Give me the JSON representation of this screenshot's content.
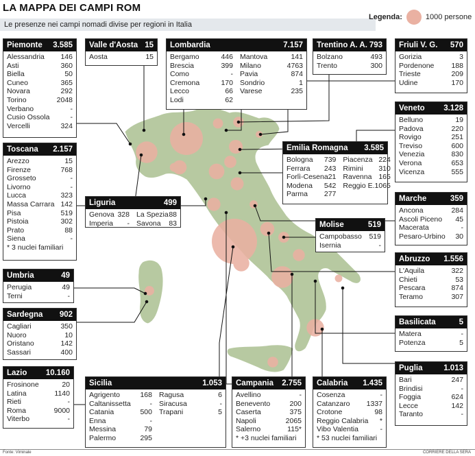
{
  "title": "LA MAPPA DEI CAMPI ROM",
  "subtitle": "Le presenze nei campi nomadi divise per regioni in Italia",
  "legend": {
    "label": "Legenda:",
    "value": "1000 persone"
  },
  "footer": {
    "source": "Fonte: Viminale",
    "credit": "CORRIERE DELLA SERA"
  },
  "colors": {
    "bubble": "#eab1a2",
    "land": "#b7c9a1",
    "sea": "#ffffff"
  },
  "regions": {
    "piemonte": {
      "name": "Piemonte",
      "total": "3.585",
      "items": [
        {
          "n": "Alessandria",
          "v": "146"
        },
        {
          "n": "Asti",
          "v": "360"
        },
        {
          "n": "Biella",
          "v": "50"
        },
        {
          "n": "Cuneo",
          "v": "365"
        },
        {
          "n": "Novara",
          "v": "292"
        },
        {
          "n": "Torino",
          "v": "2048"
        },
        {
          "n": "Verbano",
          "v": "-"
        },
        {
          "n": "Cusio Ossola",
          "v": "-"
        },
        {
          "n": "Vercelli",
          "v": "324"
        }
      ]
    },
    "toscana": {
      "name": "Toscana",
      "total": "2.157",
      "items": [
        {
          "n": "Arezzo",
          "v": "15"
        },
        {
          "n": "Firenze",
          "v": "768"
        },
        {
          "n": "Grosseto",
          "v": "-"
        },
        {
          "n": "Livorno",
          "v": "-"
        },
        {
          "n": "Lucca",
          "v": "323"
        },
        {
          "n": "Massa Carrara",
          "v": "142"
        },
        {
          "n": "Pisa",
          "v": "519"
        },
        {
          "n": "Pistoia",
          "v": "302"
        },
        {
          "n": "Prato",
          "v": "88"
        },
        {
          "n": "Siena",
          "v": "-"
        }
      ],
      "note": "* 3 nuclei familiari"
    },
    "umbria": {
      "name": "Umbria",
      "total": "49",
      "items": [
        {
          "n": "Perugia",
          "v": "49"
        },
        {
          "n": "Terni",
          "v": "-"
        }
      ]
    },
    "sardegna": {
      "name": "Sardegna",
      "total": "902",
      "items": [
        {
          "n": "Cagliari",
          "v": "350"
        },
        {
          "n": "Nuoro",
          "v": "10"
        },
        {
          "n": "Oristano",
          "v": "142"
        },
        {
          "n": "Sassari",
          "v": "400"
        }
      ]
    },
    "lazio": {
      "name": "Lazio",
      "total": "10.160",
      "items": [
        {
          "n": "Frosinone",
          "v": "20"
        },
        {
          "n": "Latina",
          "v": "1140"
        },
        {
          "n": "Rieti",
          "v": "-"
        },
        {
          "n": "Roma",
          "v": "9000"
        },
        {
          "n": "Viterbo",
          "v": "-"
        }
      ]
    },
    "valle": {
      "name": "Valle d'Aosta",
      "total": "15",
      "items": [
        {
          "n": "Aosta",
          "v": "15"
        }
      ]
    },
    "lombardia": {
      "name": "Lombardia",
      "total": "7.157",
      "col1": [
        {
          "n": "Bergamo",
          "v": "446"
        },
        {
          "n": "Brescia",
          "v": "399"
        },
        {
          "n": "Como",
          "v": "-"
        },
        {
          "n": "Cremona",
          "v": "170"
        },
        {
          "n": "Lecco",
          "v": "66"
        },
        {
          "n": "Lodi",
          "v": "62"
        }
      ],
      "col2": [
        {
          "n": "Mantova",
          "v": "141"
        },
        {
          "n": "Milano",
          "v": "4763"
        },
        {
          "n": "Pavia",
          "v": "874"
        },
        {
          "n": "Sondrio",
          "v": "1"
        },
        {
          "n": "Varese",
          "v": "235"
        }
      ]
    },
    "trentino": {
      "name": "Trentino A. A.",
      "total": "793",
      "items": [
        {
          "n": "Bolzano",
          "v": "493"
        },
        {
          "n": "Trento",
          "v": "300"
        }
      ]
    },
    "friuli": {
      "name": "Friuli V. G.",
      "total": "570",
      "items": [
        {
          "n": "Gorizia",
          "v": "3"
        },
        {
          "n": "Pordenone",
          "v": "188"
        },
        {
          "n": "Trieste",
          "v": "209"
        },
        {
          "n": "Udine",
          "v": "170"
        }
      ]
    },
    "veneto": {
      "name": "Veneto",
      "total": "3.128",
      "items": [
        {
          "n": "Belluno",
          "v": "19"
        },
        {
          "n": "Padova",
          "v": "220"
        },
        {
          "n": "Rovigo",
          "v": "251"
        },
        {
          "n": "Treviso",
          "v": "600"
        },
        {
          "n": "Venezia",
          "v": "830"
        },
        {
          "n": "Verona",
          "v": "653"
        },
        {
          "n": "Vicenza",
          "v": "555"
        }
      ]
    },
    "emilia": {
      "name": "Emilia Romagna",
      "total": "3.585",
      "col1": [
        {
          "n": "Bologna",
          "v": "739"
        },
        {
          "n": "Ferrara",
          "v": "243"
        },
        {
          "n": "Forlì-Cesena",
          "v": "21"
        },
        {
          "n": "Modena",
          "v": "542"
        },
        {
          "n": "Parma",
          "v": "277"
        }
      ],
      "col2": [
        {
          "n": "Piacenza",
          "v": "224"
        },
        {
          "n": "Rimini",
          "v": "310"
        },
        {
          "n": "Ravenna",
          "v": "165"
        },
        {
          "n": "Reggio E.",
          "v": "1065"
        }
      ]
    },
    "liguria": {
      "name": "Liguria",
      "total": "499",
      "col1": [
        {
          "n": "Genova",
          "v": "328"
        },
        {
          "n": "Imperia",
          "v": "-"
        }
      ],
      "col2": [
        {
          "n": "La Spezia",
          "v": "88"
        },
        {
          "n": "Savona",
          "v": "83"
        }
      ]
    },
    "marche": {
      "name": "Marche",
      "total": "359",
      "items": [
        {
          "n": "Ancona",
          "v": "284"
        },
        {
          "n": "Ascoli Piceno",
          "v": "45"
        },
        {
          "n": "Macerata",
          "v": "-"
        },
        {
          "n": "Pesaro-Urbino",
          "v": "30"
        }
      ]
    },
    "molise": {
      "name": "Molise",
      "total": "519",
      "items": [
        {
          "n": "Campobasso",
          "v": "519"
        },
        {
          "n": "Isernia",
          "v": "-"
        }
      ]
    },
    "abruzzo": {
      "name": "Abruzzo",
      "total": "1.556",
      "items": [
        {
          "n": "L'Aquila",
          "v": "322"
        },
        {
          "n": "Chieti",
          "v": "53"
        },
        {
          "n": "Pescara",
          "v": "874"
        },
        {
          "n": "Teramo",
          "v": "307"
        }
      ]
    },
    "basilicata": {
      "name": "Basilicata",
      "total": "5",
      "items": [
        {
          "n": "Matera",
          "v": "-"
        },
        {
          "n": "Potenza",
          "v": "5"
        }
      ]
    },
    "puglia": {
      "name": "Puglia",
      "total": "1.013",
      "items": [
        {
          "n": "Bari",
          "v": "247"
        },
        {
          "n": "Brindisi",
          "v": "-"
        },
        {
          "n": "Foggia",
          "v": "624"
        },
        {
          "n": "Lecce",
          "v": "142"
        },
        {
          "n": "Taranto",
          "v": "-"
        }
      ]
    },
    "sicilia": {
      "name": "Sicilia",
      "total": "1.053",
      "col1": [
        {
          "n": "Agrigento",
          "v": "168"
        },
        {
          "n": "Caltanissetta",
          "v": "-"
        },
        {
          "n": "Catania",
          "v": "500"
        },
        {
          "n": "Enna",
          "v": "-"
        },
        {
          "n": "Messina",
          "v": "79"
        },
        {
          "n": "Palermo",
          "v": "295"
        }
      ],
      "col2": [
        {
          "n": "Ragusa",
          "v": "6"
        },
        {
          "n": "Siracusa",
          "v": "-"
        },
        {
          "n": "Trapani",
          "v": "5"
        }
      ]
    },
    "campania": {
      "name": "Campania",
      "total": "2.755",
      "items": [
        {
          "n": "Avellino",
          "v": "-"
        },
        {
          "n": "Benevento",
          "v": "200"
        },
        {
          "n": "Caserta",
          "v": "375"
        },
        {
          "n": "Napoli",
          "v": "2065"
        },
        {
          "n": "Salerno",
          "v": "115*"
        }
      ],
      "note": "* +3 nuclei familiari"
    },
    "calabria": {
      "name": "Calabria",
      "total": "1.435",
      "items": [
        {
          "n": "Cosenza",
          "v": "-"
        },
        {
          "n": "Catanzaro",
          "v": "1337"
        },
        {
          "n": "Crotone",
          "v": "98"
        },
        {
          "n": "Reggio Calabria",
          "v": "*"
        },
        {
          "n": "Vibo Valentia",
          "v": "-"
        }
      ],
      "note": "* 53 nuclei familiari"
    }
  }
}
